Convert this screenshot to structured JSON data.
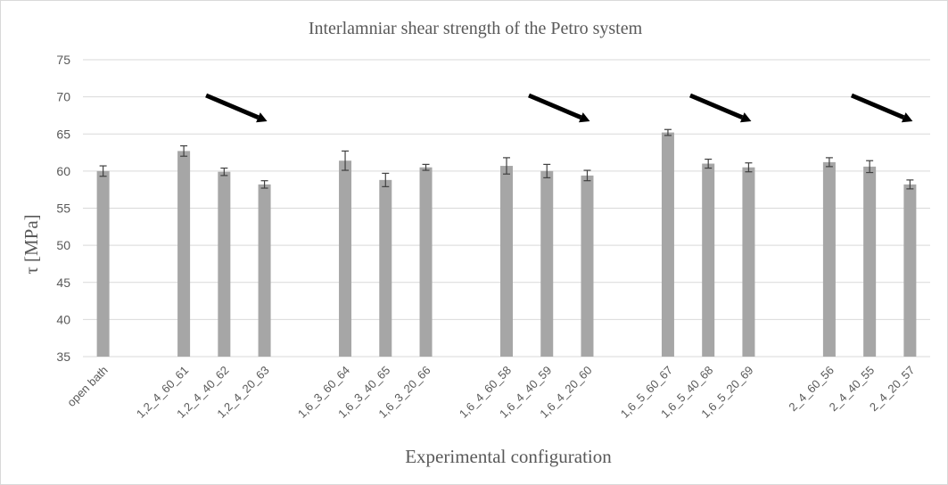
{
  "chart_data": {
    "type": "bar",
    "title": "Interlamniar shear strength of the Petro system",
    "xlabel": "Experimental configuration",
    "ylabel": "τ [MPa]",
    "ylim": [
      35,
      75
    ],
    "yticks": [
      35,
      40,
      45,
      50,
      55,
      60,
      65,
      70,
      75
    ],
    "grid": true,
    "legend": "none",
    "categories": [
      "open bath",
      "",
      "1,2_4_60_61",
      "1,2_4_40_62",
      "1,2_4_20_63",
      "",
      "1,6_3_60_64",
      "1,6_3_40_65",
      "1,6_3_20_66",
      "",
      "1,6_4_60_58",
      "1,6_4_40_59",
      "1,6_4_20_60",
      "",
      "1,6_5_60_67",
      "1,6_5_40_68",
      "1,6_5_20_69",
      "",
      "2_4_60_56",
      "2_4_40_55",
      "2_4_20_57"
    ],
    "values": [
      60.0,
      null,
      62.7,
      59.9,
      58.2,
      null,
      61.4,
      58.8,
      60.5,
      null,
      60.7,
      60.0,
      59.4,
      null,
      65.2,
      61.0,
      60.5,
      null,
      61.2,
      60.6,
      58.2
    ],
    "errors": [
      0.7,
      null,
      0.7,
      0.5,
      0.5,
      null,
      1.3,
      0.9,
      0.4,
      null,
      1.1,
      0.9,
      0.7,
      null,
      0.4,
      0.6,
      0.6,
      null,
      0.6,
      0.8,
      0.6
    ],
    "bar_color": "#a6a6a6",
    "error_color": "#404040",
    "annotations": [
      {
        "type": "arrow",
        "direction": "down-right",
        "over_group": "1,2_4"
      },
      {
        "type": "arrow",
        "direction": "down-right",
        "over_group": "1,6_4"
      },
      {
        "type": "arrow",
        "direction": "down-right",
        "over_group": "1,6_5"
      },
      {
        "type": "arrow",
        "direction": "down-right",
        "over_group": "2_4"
      }
    ]
  }
}
